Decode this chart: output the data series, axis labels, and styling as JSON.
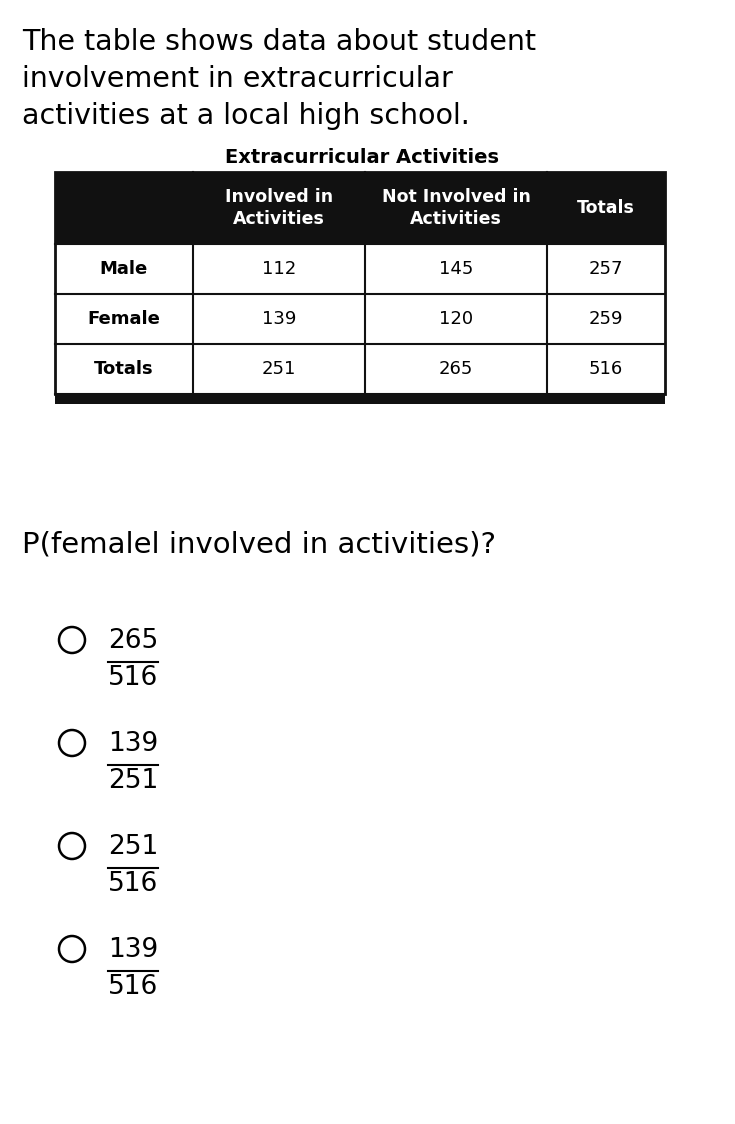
{
  "intro_text_lines": [
    "The table shows data about student",
    "involvement in extracurricular",
    "activities at a local high school."
  ],
  "table_title": "Extracurricular Activities",
  "col_headers": [
    "Involved in\nActivities",
    "Not Involved in\nActivities",
    "Totals"
  ],
  "row_headers": [
    "Male",
    "Female",
    "Totals"
  ],
  "table_data": [
    [
      "112",
      "145",
      "257"
    ],
    [
      "139",
      "120",
      "259"
    ],
    [
      "251",
      "265",
      "516"
    ]
  ],
  "question_text": "P(femalel involved in activities)?",
  "options": [
    {
      "numerator": "265",
      "denominator": "516"
    },
    {
      "numerator": "139",
      "denominator": "251"
    },
    {
      "numerator": "251",
      "denominator": "516"
    },
    {
      "numerator": "139",
      "denominator": "516"
    }
  ],
  "bg_color": "#ffffff",
  "header_bg": "#111111",
  "header_text_color": "#ffffff",
  "cell_text_color": "#000000",
  "table_border_color": "#111111",
  "bottom_bar_color": "#111111"
}
